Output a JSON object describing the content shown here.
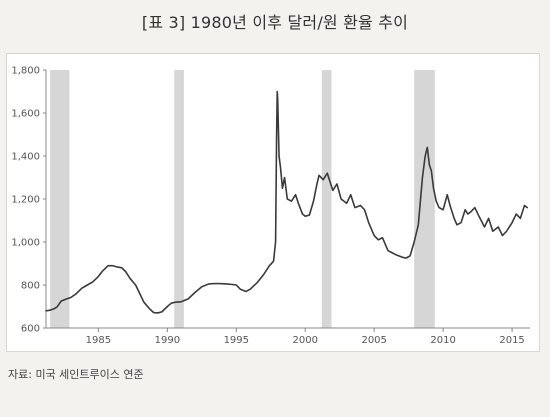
{
  "title": "[표 3] 1980년 이후 달러/원 환율 추이",
  "source": "자료: 미국 세인트루이스 연준",
  "colors": {
    "line": "#3a3a3a",
    "recession_band": "#d6d6d6",
    "background": "#f3f2ef",
    "plot_background": "#ffffff"
  },
  "chart_data": {
    "type": "line",
    "title": "[표 3] 1980년 이후 달러/원 환율 추이",
    "xlabel": "",
    "ylabel": "",
    "xlim": [
      1981.2,
      2016.3
    ],
    "ylim": [
      600,
      1800
    ],
    "x_ticks": [
      1985,
      1990,
      1995,
      2000,
      2005,
      2010,
      2015
    ],
    "x_tick_labels": [
      "1985",
      "1990",
      "1995",
      "2000",
      "2005",
      "2010",
      "2015"
    ],
    "y_ticks": [
      600,
      800,
      1000,
      1200,
      1400,
      1600,
      1800
    ],
    "y_tick_labels": [
      "600",
      "800",
      "1,000",
      "1,200",
      "1,400",
      "1,600",
      "1,800"
    ],
    "grid": false,
    "legend": "none",
    "shaded_periods": [
      {
        "start": 1981.5,
        "end": 1982.9
      },
      {
        "start": 1990.5,
        "end": 1991.2
      },
      {
        "start": 2001.2,
        "end": 2001.9
      },
      {
        "start": 2007.9,
        "end": 2009.4
      }
    ],
    "series": [
      {
        "x": [
          1981.2,
          1981.5,
          1981.8,
          1982.0,
          1982.3,
          1982.6,
          1983.0,
          1983.4,
          1983.8,
          1984.2,
          1984.6,
          1985.0,
          1985.3,
          1985.7,
          1986.0,
          1986.3,
          1986.7,
          1987.0,
          1987.3,
          1987.7,
          1988.0,
          1988.3,
          1988.7,
          1989.0,
          1989.3,
          1989.6,
          1990.0,
          1990.3,
          1990.6,
          1991.0,
          1991.5,
          1992.0,
          1992.5,
          1993.0,
          1993.5,
          1994.0,
          1994.5,
          1995.0,
          1995.3,
          1995.7,
          1996.0,
          1996.5,
          1997.0,
          1997.4,
          1997.7,
          1997.85,
          1997.92,
          1997.97,
          1998.0,
          1998.1,
          1998.2,
          1998.35,
          1998.5,
          1998.7,
          1999.0,
          1999.3,
          1999.5,
          1999.8,
          2000.0,
          2000.3,
          2000.6,
          2000.85,
          2001.0,
          2001.3,
          2001.6,
          2002.0,
          2002.3,
          2002.6,
          2003.0,
          2003.3,
          2003.6,
          2004.0,
          2004.3,
          2004.6,
          2005.0,
          2005.3,
          2005.6,
          2006.0,
          2006.3,
          2006.6,
          2007.0,
          2007.3,
          2007.6,
          2007.9,
          2008.2,
          2008.5,
          2008.7,
          2008.85,
          2009.0,
          2009.15,
          2009.3,
          2009.5,
          2009.7,
          2010.0,
          2010.3,
          2010.5,
          2010.8,
          2011.0,
          2011.3,
          2011.6,
          2011.8,
          2012.0,
          2012.3,
          2012.6,
          2013.0,
          2013.3,
          2013.6,
          2014.0,
          2014.3,
          2014.6,
          2015.0,
          2015.3,
          2015.6,
          2015.9,
          2016.1
        ],
        "values": [
          680,
          683,
          690,
          698,
          725,
          733,
          742,
          760,
          785,
          800,
          815,
          840,
          865,
          890,
          890,
          885,
          880,
          860,
          830,
          800,
          760,
          720,
          690,
          672,
          670,
          675,
          700,
          716,
          720,
          722,
          735,
          765,
          792,
          805,
          807,
          806,
          804,
          800,
          780,
          770,
          780,
          810,
          850,
          890,
          910,
          1000,
          1480,
          1700,
          1670,
          1400,
          1350,
          1250,
          1300,
          1200,
          1190,
          1220,
          1180,
          1130,
          1120,
          1125,
          1190,
          1270,
          1310,
          1290,
          1320,
          1240,
          1270,
          1200,
          1180,
          1220,
          1160,
          1170,
          1150,
          1090,
          1030,
          1010,
          1020,
          960,
          950,
          940,
          930,
          925,
          935,
          1000,
          1080,
          1300,
          1400,
          1440,
          1360,
          1330,
          1250,
          1190,
          1160,
          1150,
          1220,
          1170,
          1110,
          1080,
          1090,
          1150,
          1130,
          1140,
          1160,
          1120,
          1070,
          1110,
          1050,
          1070,
          1030,
          1050,
          1090,
          1130,
          1110,
          1170,
          1160
        ]
      }
    ]
  }
}
